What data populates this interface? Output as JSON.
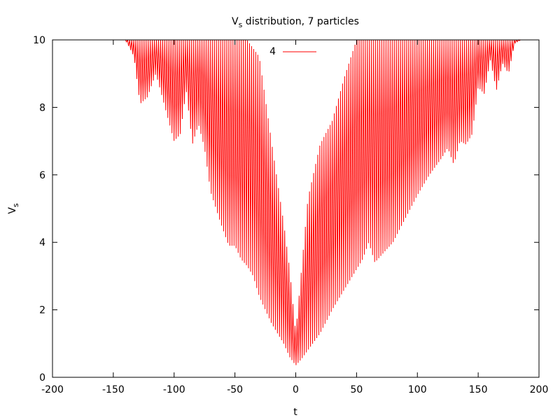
{
  "chart_data": {
    "type": "line",
    "title_main": "V",
    "title_sub": "s",
    "title_rest": " distribution, 7 particles",
    "xlabel": "t",
    "ylabel_main": "V",
    "ylabel_sub": "s",
    "xlim": [
      -200,
      200
    ],
    "ylim": [
      0,
      10
    ],
    "xticks": [
      -200,
      -150,
      -100,
      -50,
      0,
      50,
      100,
      150,
      200
    ],
    "yticks": [
      0,
      2,
      4,
      6,
      8,
      10
    ],
    "xtick_labels": [
      "-200",
      "-150",
      "-100",
      "-50",
      "0",
      "50",
      "100",
      "150",
      "200"
    ],
    "ytick_labels": [
      "0",
      "2",
      "4",
      "6",
      "8",
      "10"
    ],
    "grid": false,
    "legend_position": "top-center",
    "series": [
      {
        "name": "4",
        "color": "#ff0000",
        "oscillation_period": 1.7,
        "upper_envelope": [
          [
            -200,
            10
          ],
          [
            -140,
            10
          ],
          [
            -130,
            10
          ],
          [
            -120,
            10
          ],
          [
            -100,
            10
          ],
          [
            -80,
            10
          ],
          [
            -60,
            10
          ],
          [
            -40,
            10
          ],
          [
            -30,
            9.5
          ],
          [
            -20,
            7
          ],
          [
            -10,
            4.6
          ],
          [
            -5,
            3.2
          ],
          [
            0,
            1.3
          ],
          [
            5,
            3.3
          ],
          [
            10,
            5.3
          ],
          [
            20,
            6.9
          ],
          [
            30,
            7.6
          ],
          [
            40,
            8.9
          ],
          [
            50,
            10
          ],
          [
            100,
            10
          ],
          [
            150,
            10
          ],
          [
            180,
            10
          ],
          [
            185,
            10
          ]
        ],
        "lower_envelope": [
          [
            -140,
            10
          ],
          [
            -133,
            9.5
          ],
          [
            -128,
            8.1
          ],
          [
            -122,
            8.3
          ],
          [
            -115,
            9
          ],
          [
            -100,
            7
          ],
          [
            -95,
            7.2
          ],
          [
            -90,
            8.5
          ],
          [
            -85,
            6.9
          ],
          [
            -80,
            7.5
          ],
          [
            -75,
            6.8
          ],
          [
            -70,
            5.5
          ],
          [
            -62,
            4.6
          ],
          [
            -55,
            3.9
          ],
          [
            -50,
            3.9
          ],
          [
            -45,
            3.5
          ],
          [
            -40,
            3.3
          ],
          [
            -35,
            3.0
          ],
          [
            -30,
            2.4
          ],
          [
            -25,
            2.0
          ],
          [
            -20,
            1.6
          ],
          [
            -15,
            1.3
          ],
          [
            -10,
            1.0
          ],
          [
            -5,
            0.6
          ],
          [
            0,
            0.35
          ],
          [
            5,
            0.55
          ],
          [
            10,
            0.8
          ],
          [
            20,
            1.3
          ],
          [
            30,
            2.0
          ],
          [
            40,
            2.6
          ],
          [
            50,
            3.2
          ],
          [
            55,
            3.5
          ],
          [
            60,
            4.0
          ],
          [
            65,
            3.4
          ],
          [
            70,
            3.6
          ],
          [
            80,
            4.0
          ],
          [
            90,
            4.7
          ],
          [
            100,
            5.4
          ],
          [
            105,
            5.7
          ],
          [
            110,
            6.0
          ],
          [
            120,
            6.5
          ],
          [
            125,
            6.8
          ],
          [
            130,
            6.3
          ],
          [
            135,
            7.0
          ],
          [
            140,
            6.9
          ],
          [
            145,
            7.2
          ],
          [
            150,
            8.6
          ],
          [
            155,
            8.4
          ],
          [
            160,
            9.4
          ],
          [
            165,
            8.5
          ],
          [
            170,
            9.3
          ],
          [
            175,
            9.0
          ],
          [
            180,
            9.9
          ],
          [
            185,
            10
          ]
        ]
      }
    ]
  },
  "legend": {
    "label": "4"
  }
}
